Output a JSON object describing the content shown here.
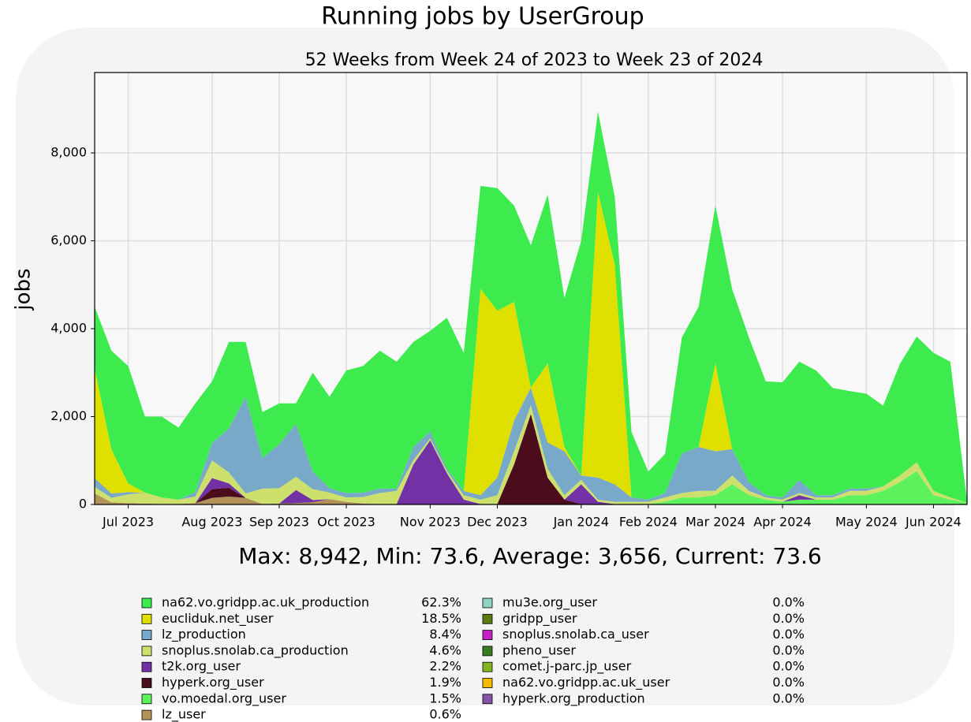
{
  "chart_data": {
    "type": "stacked_area",
    "title": "Running jobs by UserGroup",
    "subtitle": "52 Weeks from Week 24 of 2023 to Week 23 of 2024",
    "y_label": "jobs",
    "stats": "Max: 8,942, Min: 73.6, Average: 3,656, Current: 73.6",
    "categories": [
      null,
      null,
      "Jul 2023",
      null,
      null,
      null,
      null,
      "Aug 2023",
      null,
      null,
      null,
      "Sep 2023",
      null,
      null,
      null,
      "Oct 2023",
      null,
      null,
      null,
      null,
      "Nov 2023",
      null,
      null,
      null,
      "Dec 2023",
      null,
      null,
      null,
      null,
      "Jan 2024",
      null,
      null,
      null,
      "Feb 2024",
      null,
      null,
      null,
      "Mar 2024",
      null,
      null,
      null,
      "Apr 2024",
      null,
      null,
      null,
      null,
      "May 2024",
      null,
      null,
      null,
      "Jun 2024",
      null,
      null
    ],
    "ylim": [
      0,
      9830
    ],
    "yticks": [
      0,
      {
        "value": 2000,
        "label": "2,000"
      },
      {
        "value": 4000,
        "label": "4,000"
      },
      {
        "value": 6000,
        "label": "6,000"
      },
      {
        "value": 8000,
        "label": "8,000"
      }
    ],
    "grid": true,
    "series": [
      {
        "name": "na62.vo.gridpp.ac.uk_production",
        "share": "62.3%",
        "color": "#3deb4f",
        "values": [
          1400,
          2250,
          2670,
          1730,
          1840,
          1640,
          2020,
          1400,
          1970,
          1250,
          1040,
          930,
          470,
          2250,
          2080,
          2790,
          2880,
          3140,
          2890,
          2390,
          2290,
          3440,
          3140,
          2340,
          2790,
          2190,
          3240,
          3840,
          3390,
          5340,
          1832,
          1540,
          1490,
          640,
          890,
          2640,
          3190,
          3590,
          3640,
          3290,
          2590,
          2620,
          2690,
          2840,
          2440,
          2220,
          2160,
          1840,
          2540,
          2860,
          3140,
          3090,
          34
        ]
      },
      {
        "name": "eucliduk.net_user",
        "share": "18.5%",
        "color": "#dfe000",
        "values": [
          2500,
          1000,
          200,
          0,
          0,
          0,
          0,
          0,
          0,
          0,
          0,
          0,
          0,
          0,
          0,
          0,
          0,
          0,
          0,
          0,
          0,
          0,
          0,
          4700,
          3800,
          2700,
          0,
          1800,
          100,
          0,
          6500,
          5000,
          0,
          0,
          0,
          0,
          0,
          2000,
          0,
          0,
          0,
          0,
          0,
          0,
          0,
          0,
          0,
          0,
          0,
          0,
          0,
          0,
          0
        ]
      },
      {
        "name": "lz_production",
        "share": "8.4%",
        "color": "#79a9c9",
        "values": [
          200,
          100,
          50,
          0,
          0,
          0,
          100,
          400,
          1000,
          2200,
          700,
          1000,
          1200,
          400,
          100,
          100,
          100,
          100,
          50,
          300,
          150,
          50,
          100,
          100,
          400,
          700,
          400,
          600,
          1000,
          100,
          500,
          400,
          100,
          50,
          100,
          900,
          1000,
          900,
          600,
          200,
          50,
          50,
          300,
          50,
          50,
          50,
          50,
          0,
          0,
          0,
          0,
          0,
          0
        ]
      },
      {
        "name": "snoplus.snolab.ca_production",
        "share": "4.6%",
        "color": "#cde06c",
        "values": [
          150,
          100,
          200,
          250,
          150,
          100,
          150,
          400,
          250,
          100,
          350,
          350,
          300,
          250,
          150,
          100,
          150,
          250,
          300,
          100,
          50,
          50,
          100,
          100,
          200,
          300,
          200,
          200,
          100,
          100,
          50,
          50,
          50,
          50,
          100,
          100,
          150,
          100,
          200,
          100,
          50,
          50,
          50,
          50,
          50,
          100,
          100,
          100,
          150,
          200,
          100,
          50,
          0
        ]
      },
      {
        "name": "t2k.org_user",
        "share": "2.2%",
        "color": "#7232a6",
        "values": [
          0,
          0,
          0,
          0,
          0,
          0,
          0,
          250,
          100,
          0,
          0,
          0,
          300,
          50,
          0,
          0,
          0,
          0,
          0,
          900,
          1450,
          700,
          100,
          0,
          0,
          0,
          0,
          0,
          0,
          450,
          50,
          0,
          0,
          0,
          0,
          0,
          0,
          0,
          0,
          0,
          0,
          0,
          100,
          0,
          0,
          0,
          0,
          0,
          0,
          0,
          0,
          0,
          0
        ]
      },
      {
        "name": "hyperk.org_user",
        "share": "1.9%",
        "color": "#4b0c1c",
        "values": [
          0,
          0,
          0,
          0,
          0,
          0,
          0,
          200,
          200,
          0,
          0,
          0,
          0,
          0,
          0,
          0,
          0,
          0,
          0,
          0,
          0,
          0,
          0,
          0,
          0,
          900,
          2050,
          600,
          100,
          0,
          0,
          0,
          0,
          0,
          0,
          0,
          0,
          0,
          0,
          0,
          0,
          0,
          0,
          0,
          0,
          0,
          0,
          0,
          0,
          0,
          0,
          0,
          0
        ]
      },
      {
        "name": "vo.moedal.org_user",
        "share": "1.5%",
        "color": "#5cf25e",
        "values": [
          0,
          0,
          0,
          0,
          0,
          0,
          0,
          0,
          0,
          0,
          0,
          0,
          0,
          0,
          0,
          0,
          0,
          0,
          0,
          0,
          0,
          0,
          0,
          0,
          0,
          0,
          0,
          0,
          0,
          0,
          0,
          0,
          0,
          0,
          50,
          150,
          150,
          200,
          450,
          200,
          100,
          50,
          100,
          100,
          100,
          200,
          200,
          300,
          500,
          750,
          200,
          100,
          30
        ]
      },
      {
        "name": "lz_user",
        "share": "0.6%",
        "color": "#b3925a",
        "values": [
          250,
          50,
          30,
          20,
          10,
          10,
          30,
          150,
          180,
          150,
          10,
          20,
          30,
          50,
          120,
          60,
          20,
          10,
          10,
          10,
          10,
          10,
          10,
          10,
          10,
          10,
          10,
          10,
          10,
          10,
          10,
          10,
          10,
          10,
          10,
          10,
          10,
          10,
          10,
          10,
          10,
          10,
          10,
          10,
          10,
          10,
          10,
          10,
          10,
          10,
          10,
          10,
          10
        ]
      },
      {
        "name": "mu3e.org_user",
        "share": "0.0%",
        "color": "#8fd3c3",
        "values": [
          0,
          0,
          0,
          0,
          0,
          0,
          0,
          0,
          0,
          0,
          0,
          0,
          0,
          0,
          0,
          0,
          0,
          0,
          0,
          0,
          0,
          0,
          0,
          0,
          0,
          0,
          0,
          0,
          0,
          0,
          0,
          0,
          0,
          0,
          0,
          0,
          0,
          0,
          0,
          0,
          0,
          0,
          0,
          0,
          0,
          0,
          0,
          0,
          0,
          0,
          0,
          0,
          0
        ]
      },
      {
        "name": "gridpp_user",
        "share": "0.0%",
        "color": "#5b7b12",
        "values": [
          0,
          0,
          0,
          0,
          0,
          0,
          0,
          0,
          0,
          0,
          0,
          0,
          0,
          0,
          0,
          0,
          0,
          0,
          0,
          0,
          0,
          0,
          0,
          0,
          0,
          0,
          0,
          0,
          0,
          0,
          0,
          0,
          0,
          0,
          0,
          0,
          0,
          0,
          0,
          0,
          0,
          0,
          0,
          0,
          0,
          0,
          0,
          0,
          0,
          0,
          0,
          0,
          0
        ]
      },
      {
        "name": "snoplus.snolab.ca_user",
        "share": "0.0%",
        "color": "#c323c6",
        "values": [
          0,
          0,
          0,
          0,
          0,
          0,
          0,
          0,
          0,
          0,
          0,
          0,
          0,
          0,
          0,
          0,
          0,
          0,
          0,
          0,
          0,
          0,
          0,
          0,
          0,
          0,
          0,
          0,
          0,
          0,
          0,
          0,
          0,
          0,
          0,
          0,
          0,
          0,
          0,
          0,
          0,
          0,
          0,
          0,
          0,
          0,
          0,
          0,
          0,
          0,
          0,
          0,
          0
        ]
      },
      {
        "name": "pheno_user",
        "share": "0.0%",
        "color": "#3b7c22",
        "values": [
          0,
          0,
          0,
          0,
          0,
          0,
          0,
          0,
          0,
          0,
          0,
          0,
          0,
          0,
          0,
          0,
          0,
          0,
          0,
          0,
          0,
          0,
          0,
          0,
          0,
          0,
          0,
          0,
          0,
          0,
          0,
          0,
          0,
          0,
          0,
          0,
          0,
          0,
          0,
          0,
          0,
          0,
          0,
          0,
          0,
          0,
          0,
          0,
          0,
          0,
          0,
          0,
          0
        ]
      },
      {
        "name": "comet.j-parc.jp_user",
        "share": "0.0%",
        "color": "#82b424",
        "values": [
          0,
          0,
          0,
          0,
          0,
          0,
          0,
          0,
          0,
          0,
          0,
          0,
          0,
          0,
          0,
          0,
          0,
          0,
          0,
          0,
          0,
          0,
          0,
          0,
          0,
          0,
          0,
          0,
          0,
          0,
          0,
          0,
          0,
          0,
          0,
          0,
          0,
          0,
          0,
          0,
          0,
          0,
          0,
          0,
          0,
          0,
          0,
          0,
          0,
          0,
          0,
          0,
          0
        ]
      },
      {
        "name": "na62.vo.gridpp.ac.uk_user",
        "share": "0.0%",
        "color": "#f2bb00",
        "values": [
          0,
          0,
          0,
          0,
          0,
          0,
          0,
          0,
          0,
          0,
          0,
          0,
          0,
          0,
          0,
          0,
          0,
          0,
          0,
          0,
          0,
          0,
          0,
          0,
          0,
          0,
          0,
          0,
          0,
          0,
          0,
          0,
          0,
          0,
          0,
          0,
          0,
          0,
          0,
          0,
          0,
          0,
          0,
          0,
          0,
          0,
          0,
          0,
          0,
          0,
          0,
          0,
          0
        ]
      },
      {
        "name": "hyperk.org_production",
        "share": "0.0%",
        "color": "#8452a8",
        "values": [
          0,
          0,
          0,
          0,
          0,
          0,
          0,
          0,
          0,
          0,
          0,
          0,
          0,
          0,
          0,
          0,
          0,
          0,
          0,
          0,
          0,
          0,
          0,
          0,
          0,
          0,
          0,
          0,
          0,
          0,
          0,
          0,
          0,
          0,
          0,
          0,
          0,
          0,
          0,
          0,
          0,
          0,
          0,
          0,
          0,
          0,
          0,
          0,
          0,
          0,
          0,
          0,
          0
        ]
      }
    ]
  }
}
